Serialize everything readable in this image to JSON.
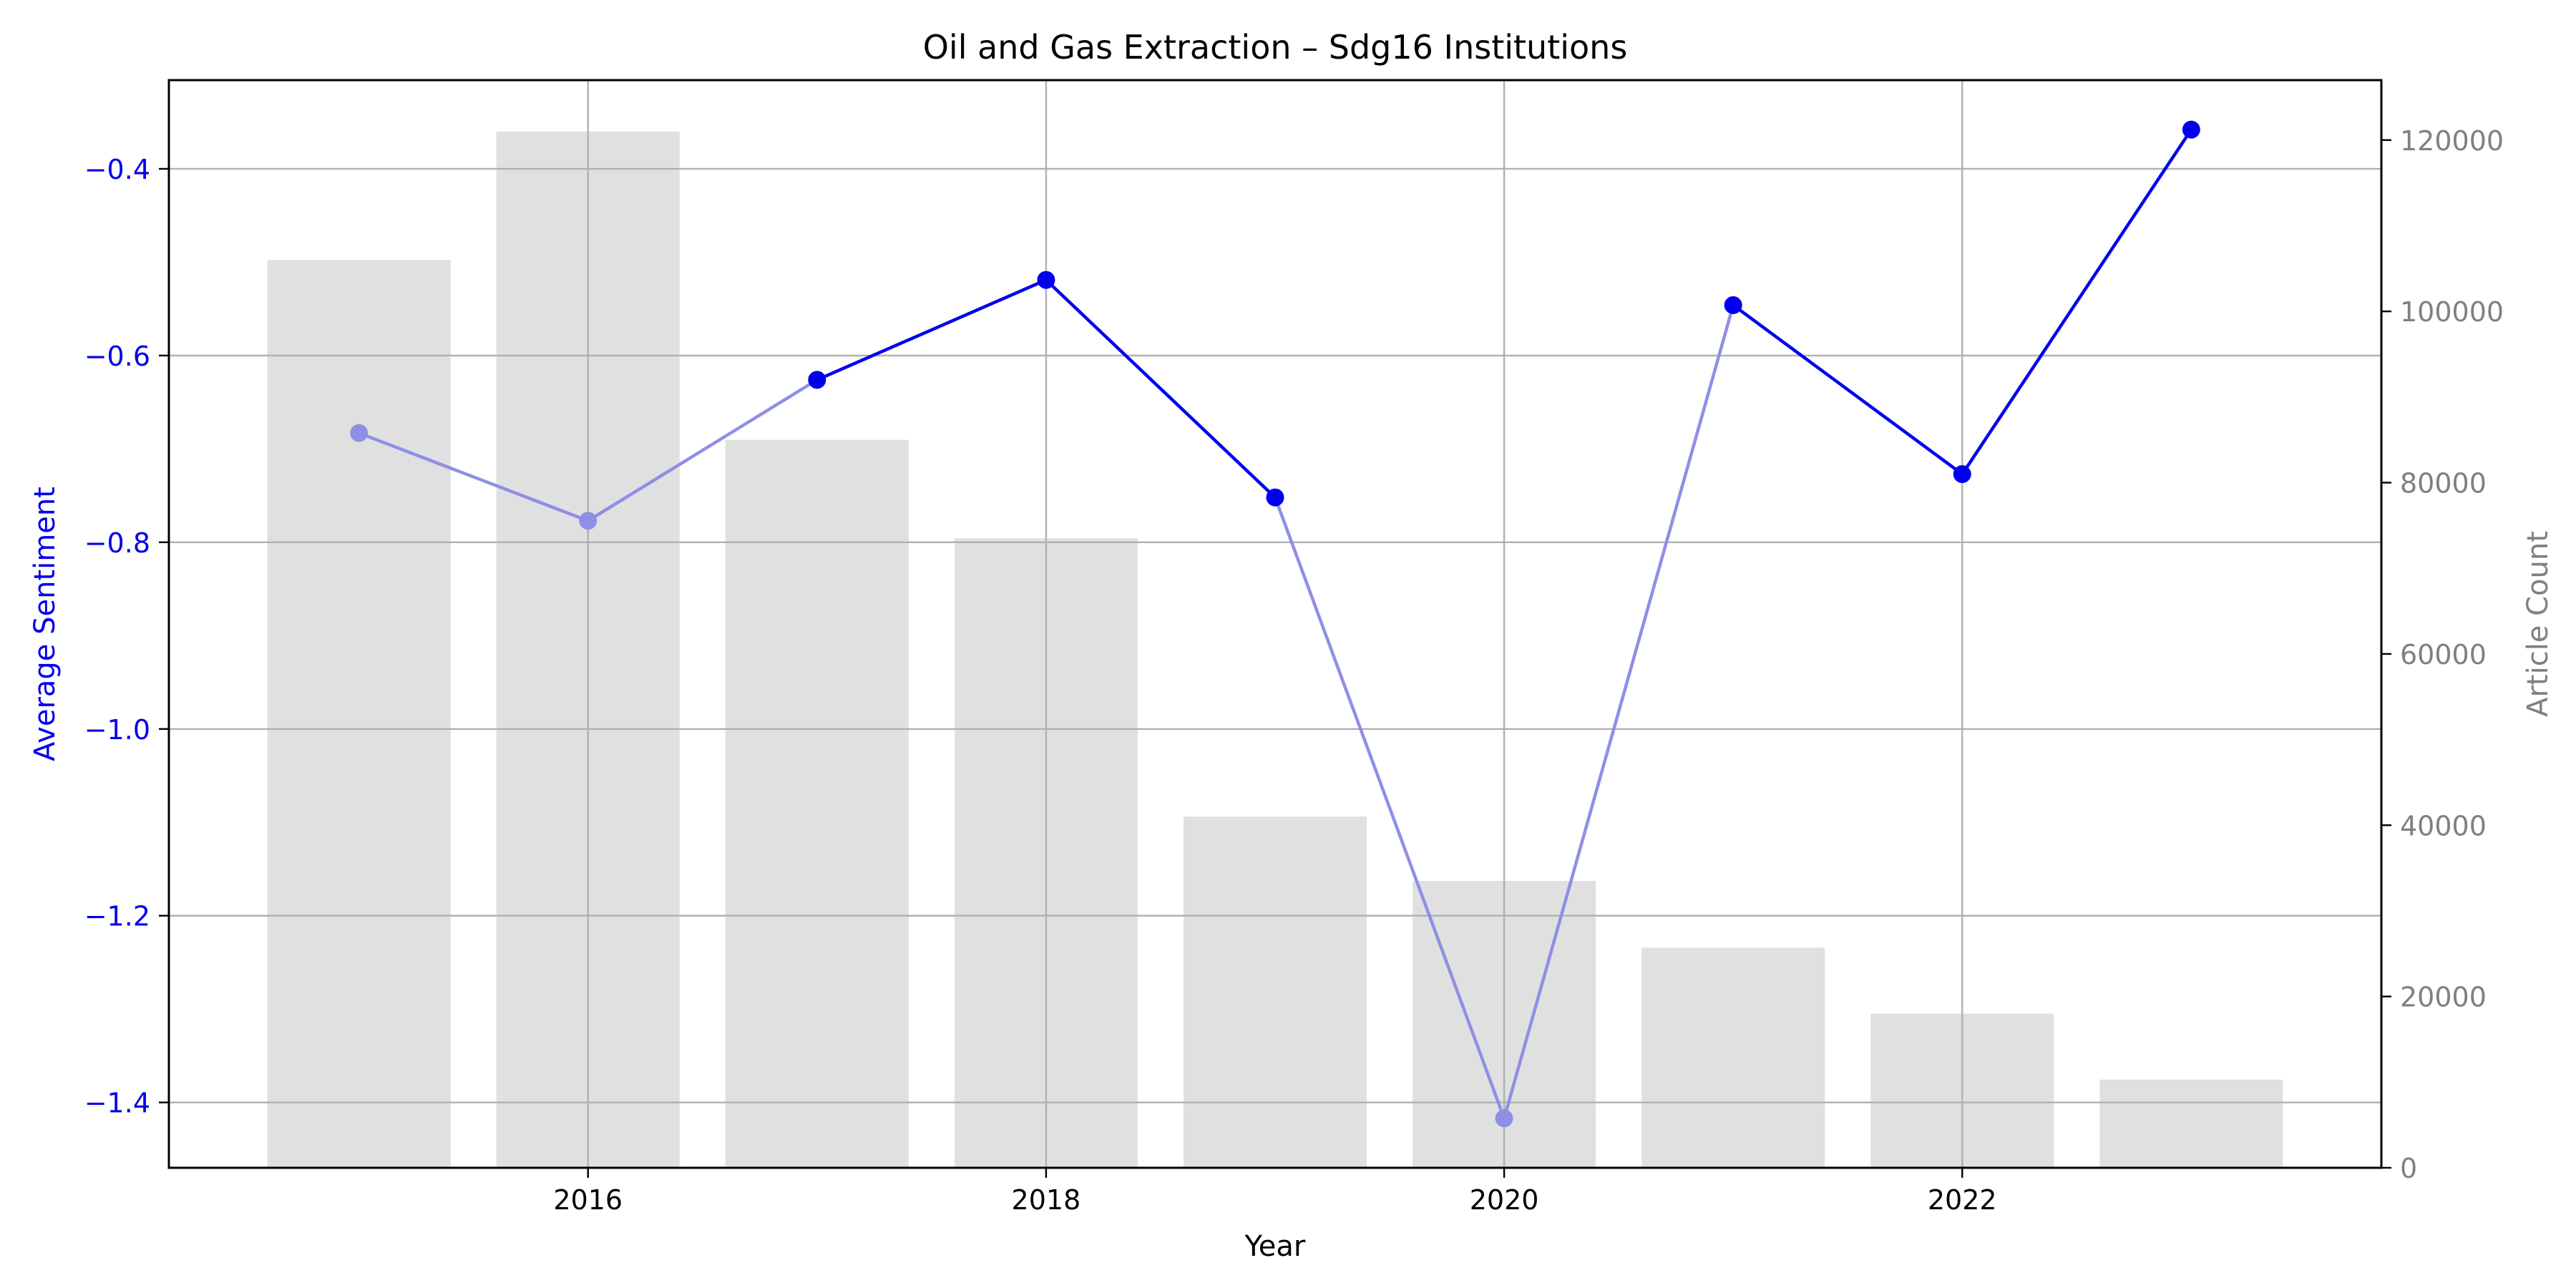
{
  "chart_data": {
    "type": "bar+line",
    "title": "Oil and Gas Extraction – Sdg16 Institutions",
    "xlabel": "Year",
    "ylabel_left": "Average Sentiment",
    "ylabel_right": "Article Count",
    "x": [
      2015,
      2016,
      2017,
      2018,
      2019,
      2020,
      2021,
      2022,
      2023
    ],
    "x_ticks": [
      2016,
      2018,
      2020,
      2022
    ],
    "x_tick_labels": [
      "2016",
      "2018",
      "2020",
      "2022"
    ],
    "xlim": [
      2014.17,
      2023.83
    ],
    "bars": {
      "name": "Article Count",
      "values": [
        106000,
        121000,
        85000,
        73500,
        41000,
        33500,
        25700,
        18000,
        10300
      ]
    },
    "line": {
      "name": "Average Sentiment",
      "values": [
        -0.683,
        -0.777,
        -0.626,
        -0.519,
        -0.752,
        -1.417,
        -0.546,
        -0.727,
        -0.358
      ],
      "faded_points": [
        2015,
        2016,
        2020
      ]
    },
    "left_axis": {
      "ylim": [
        -1.47,
        -0.305
      ],
      "ticks": [
        -1.4,
        -1.2,
        -1.0,
        -0.8,
        -0.6,
        -0.4
      ],
      "tick_labels": [
        "−1.4",
        "−1.2",
        "−1.0",
        "−0.8",
        "−0.6",
        "−0.4"
      ]
    },
    "right_axis": {
      "ylim": [
        0,
        127000
      ],
      "ticks": [
        0,
        20000,
        40000,
        60000,
        80000,
        100000,
        120000
      ],
      "tick_labels": [
        "0",
        "20000",
        "40000",
        "60000",
        "80000",
        "100000",
        "120000"
      ]
    },
    "grid": true,
    "colors": {
      "line": "#0000ee",
      "line_faded": "#8f8fe6",
      "bar": "#e0e0e0",
      "grid": "#b0b0b0",
      "left_axis": "#0000ee",
      "right_axis": "#808080",
      "text": "#000000"
    }
  }
}
